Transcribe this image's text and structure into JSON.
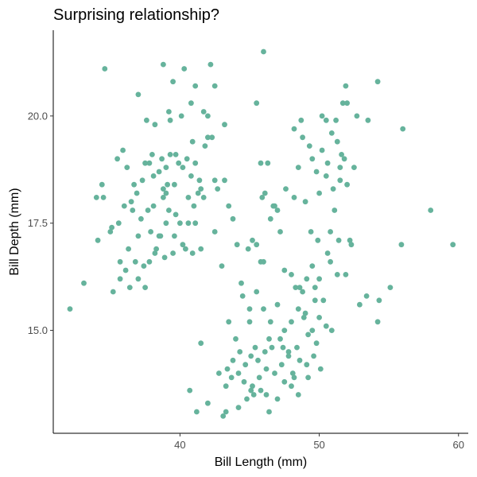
{
  "chart_data": {
    "type": "scatter",
    "title": "Surprising relationship?",
    "xlabel": "Bill Length (mm)",
    "ylabel": "Bill Depth (mm)",
    "xlim": [
      30.9,
      60.7
    ],
    "ylim": [
      12.6,
      22.0
    ],
    "x_ticks": [
      40,
      50,
      60
    ],
    "x_tick_labels": [
      "40",
      "50",
      "60"
    ],
    "y_ticks": [
      15.0,
      17.5,
      20.0
    ],
    "y_tick_labels": [
      "15.0",
      "17.5",
      "20.0"
    ],
    "grid": false,
    "legend": "none",
    "point_color": "#66b39c",
    "points": [
      [
        34.6,
        21.1
      ],
      [
        38.8,
        21.2
      ],
      [
        40.3,
        21.1
      ],
      [
        42.2,
        21.2
      ],
      [
        46.0,
        21.5
      ],
      [
        37.0,
        20.5
      ],
      [
        39.5,
        20.8
      ],
      [
        41.1,
        20.7
      ],
      [
        42.5,
        20.7
      ],
      [
        51.9,
        20.7
      ],
      [
        54.2,
        20.8
      ],
      [
        39.2,
        20.1
      ],
      [
        40.1,
        20.0
      ],
      [
        40.8,
        20.3
      ],
      [
        41.7,
        20.1
      ],
      [
        42.0,
        20.0
      ],
      [
        45.5,
        20.3
      ],
      [
        51.7,
        20.3
      ],
      [
        52.0,
        20.3
      ],
      [
        50.2,
        20.0
      ],
      [
        52.7,
        20.0
      ],
      [
        37.6,
        19.9
      ],
      [
        38.2,
        19.8
      ],
      [
        39.3,
        19.9
      ],
      [
        43.2,
        19.8
      ],
      [
        48.7,
        19.9
      ],
      [
        50.5,
        19.9
      ],
      [
        51.2,
        19.9
      ],
      [
        53.5,
        19.9
      ],
      [
        56.0,
        19.7
      ],
      [
        48.2,
        19.7
      ],
      [
        48.8,
        19.5
      ],
      [
        34.4,
        18.4
      ],
      [
        35.5,
        19.0
      ],
      [
        35.9,
        19.2
      ],
      [
        36.2,
        18.8
      ],
      [
        36.7,
        18.4
      ],
      [
        36.9,
        18.2
      ],
      [
        37.3,
        18.5
      ],
      [
        37.8,
        18.9
      ],
      [
        38.1,
        18.6
      ],
      [
        38.5,
        18.7
      ],
      [
        38.8,
        18.3
      ],
      [
        39.0,
        18.8
      ],
      [
        39.3,
        19.1
      ],
      [
        39.6,
        18.4
      ],
      [
        39.9,
        18.9
      ],
      [
        40.2,
        18.8
      ],
      [
        40.5,
        19.0
      ],
      [
        40.8,
        18.6
      ],
      [
        41.1,
        18.9
      ],
      [
        41.4,
        18.5
      ],
      [
        41.8,
        19.3
      ],
      [
        42.0,
        19.5
      ],
      [
        42.3,
        19.5
      ],
      [
        42.5,
        18.5
      ],
      [
        43.2,
        18.5
      ],
      [
        38.7,
        19.0
      ],
      [
        39.7,
        19.1
      ],
      [
        40.9,
        19.4
      ],
      [
        41.5,
        18.3
      ],
      [
        37.5,
        18.9
      ],
      [
        38.0,
        19.1
      ],
      [
        36.5,
        18.0
      ],
      [
        34.0,
        18.1
      ],
      [
        35.1,
        17.4
      ],
      [
        35.6,
        17.5
      ],
      [
        36.0,
        17.9
      ],
      [
        36.6,
        17.8
      ],
      [
        37.2,
        17.6
      ],
      [
        37.7,
        17.8
      ],
      [
        38.1,
        17.9
      ],
      [
        38.6,
        17.2
      ],
      [
        39.0,
        17.5
      ],
      [
        39.2,
        17.8
      ],
      [
        39.7,
        17.7
      ],
      [
        40.2,
        17.0
      ],
      [
        40.6,
        17.5
      ],
      [
        41.1,
        17.5
      ],
      [
        41.5,
        16.9
      ],
      [
        42.5,
        17.3
      ],
      [
        43.5,
        17.9
      ],
      [
        35.0,
        17.3
      ],
      [
        36.3,
        16.9
      ],
      [
        37.0,
        17.2
      ],
      [
        37.8,
        16.6
      ],
      [
        38.3,
        16.9
      ],
      [
        38.9,
        16.7
      ],
      [
        39.5,
        16.8
      ],
      [
        40.4,
        16.9
      ],
      [
        40.9,
        16.8
      ],
      [
        34.1,
        17.1
      ],
      [
        34.5,
        18.1
      ],
      [
        35.7,
        16.6
      ],
      [
        36.1,
        16.4
      ],
      [
        36.8,
        16.6
      ],
      [
        37.4,
        16.5
      ],
      [
        38.2,
        16.8
      ],
      [
        38.5,
        17.2
      ],
      [
        39.6,
        17.2
      ],
      [
        40.0,
        17.5
      ],
      [
        41.0,
        17.9
      ],
      [
        41.3,
        18.2
      ],
      [
        37.0,
        16.2
      ],
      [
        37.9,
        17.3
      ],
      [
        38.8,
        18.1
      ],
      [
        39.1,
        18.4
      ],
      [
        33.1,
        16.1
      ],
      [
        32.1,
        15.5
      ],
      [
        35.2,
        15.9
      ],
      [
        35.7,
        16.2
      ],
      [
        36.4,
        16.0
      ],
      [
        37.5,
        16.0
      ],
      [
        39.0,
        18.2
      ],
      [
        40.6,
        18.1
      ],
      [
        41.7,
        18.1
      ],
      [
        42.7,
        18.3
      ],
      [
        43.8,
        17.6
      ],
      [
        44.1,
        17.0
      ],
      [
        45.5,
        17.0
      ],
      [
        45.9,
        18.1
      ],
      [
        45.2,
        17.1
      ],
      [
        46.1,
        18.2
      ],
      [
        46.7,
        17.9
      ],
      [
        47.0,
        17.8
      ],
      [
        48.2,
        18.1
      ],
      [
        49.0,
        18.0
      ],
      [
        50.0,
        18.2
      ],
      [
        50.5,
        18.6
      ],
      [
        51.0,
        18.3
      ],
      [
        51.5,
        18.5
      ],
      [
        52.0,
        18.4
      ],
      [
        49.5,
        19.0
      ],
      [
        50.2,
        19.2
      ],
      [
        51.3,
        19.4
      ],
      [
        51.6,
        19.1
      ],
      [
        50.9,
        19.6
      ],
      [
        49.3,
        19.3
      ],
      [
        48.5,
        18.8
      ],
      [
        49.8,
        18.7
      ],
      [
        52.5,
        18.8
      ],
      [
        50.6,
        18.9
      ],
      [
        51.8,
        19.0
      ],
      [
        47.6,
        18.3
      ],
      [
        50.8,
        17.3
      ],
      [
        51.4,
        17.1
      ],
      [
        52.3,
        17.0
      ],
      [
        49.9,
        17.1
      ],
      [
        51.1,
        17.8
      ],
      [
        49.4,
        17.3
      ],
      [
        45.8,
        18.9
      ],
      [
        46.3,
        18.9
      ],
      [
        46.5,
        17.6
      ],
      [
        46.8,
        17.9
      ],
      [
        44.9,
        16.9
      ],
      [
        45.8,
        16.6
      ],
      [
        47.5,
        16.4
      ],
      [
        48.0,
        16.3
      ],
      [
        48.6,
        16.0
      ],
      [
        49.1,
        16.2
      ],
      [
        49.5,
        16.5
      ],
      [
        48.8,
        15.9
      ],
      [
        48.3,
        16.0
      ],
      [
        49.7,
        15.7
      ],
      [
        50.0,
        16.2
      ],
      [
        50.3,
        15.7
      ],
      [
        50.8,
        16.6
      ],
      [
        51.3,
        16.3
      ],
      [
        51.9,
        16.3
      ],
      [
        52.9,
        15.6
      ],
      [
        53.4,
        15.8
      ],
      [
        54.3,
        15.7
      ],
      [
        55.1,
        16.0
      ],
      [
        55.9,
        17.0
      ],
      [
        58.0,
        17.8
      ],
      [
        59.6,
        17.0
      ],
      [
        43.0,
        16.5
      ],
      [
        44.5,
        15.8
      ],
      [
        45.0,
        15.2
      ],
      [
        45.5,
        15.9
      ],
      [
        46.0,
        15.5
      ],
      [
        46.5,
        15.2
      ],
      [
        47.0,
        15.6
      ],
      [
        47.5,
        15.0
      ],
      [
        48.0,
        15.2
      ],
      [
        48.5,
        15.5
      ],
      [
        49.0,
        15.4
      ],
      [
        49.5,
        15.0
      ],
      [
        50.0,
        15.3
      ],
      [
        50.5,
        15.1
      ],
      [
        50.9,
        15.0
      ],
      [
        49.8,
        14.7
      ],
      [
        49.2,
        14.9
      ],
      [
        48.4,
        14.6
      ],
      [
        47.8,
        14.5
      ],
      [
        47.2,
        14.8
      ],
      [
        46.6,
        14.6
      ],
      [
        46.1,
        14.5
      ],
      [
        45.6,
        14.3
      ],
      [
        45.1,
        14.4
      ],
      [
        44.7,
        14.2
      ],
      [
        44.3,
        14.5
      ],
      [
        43.8,
        14.3
      ],
      [
        43.4,
        14.1
      ],
      [
        42.8,
        14.0
      ],
      [
        43.3,
        13.7
      ],
      [
        43.7,
        13.9
      ],
      [
        44.2,
        14.0
      ],
      [
        44.6,
        13.8
      ],
      [
        45.2,
        13.7
      ],
      [
        45.7,
        13.9
      ],
      [
        46.2,
        14.1
      ],
      [
        46.8,
        14.0
      ],
      [
        47.3,
        14.2
      ],
      [
        47.8,
        14.4
      ],
      [
        48.2,
        13.9
      ],
      [
        48.6,
        14.3
      ],
      [
        49.1,
        14.2
      ],
      [
        49.6,
        14.4
      ],
      [
        50.1,
        14.1
      ],
      [
        45.3,
        13.5
      ],
      [
        44.8,
        13.4
      ],
      [
        44.2,
        13.2
      ],
      [
        43.1,
        13.0
      ],
      [
        42.0,
        13.3
      ],
      [
        41.2,
        13.1
      ],
      [
        40.7,
        13.6
      ],
      [
        45.8,
        13.6
      ],
      [
        46.2,
        13.5
      ],
      [
        46.4,
        13.1
      ],
      [
        47.0,
        13.4
      ],
      [
        47.5,
        13.8
      ],
      [
        48.0,
        13.7
      ],
      [
        48.5,
        13.5
      ],
      [
        43.3,
        13.1
      ],
      [
        45.1,
        13.6
      ],
      [
        41.5,
        14.7
      ],
      [
        43.5,
        15.2
      ],
      [
        44.0,
        14.8
      ],
      [
        45.4,
        14.6
      ],
      [
        46.4,
        14.8
      ],
      [
        47.4,
        14.6
      ],
      [
        48.9,
        15.3
      ],
      [
        49.7,
        16.0
      ],
      [
        50.6,
        16.8
      ],
      [
        47.2,
        17.3
      ],
      [
        46.0,
        16.6
      ],
      [
        44.4,
        16.1
      ],
      [
        45.0,
        15.5
      ],
      [
        52.2,
        17.1
      ],
      [
        51.5,
        18.8
      ],
      [
        54.2,
        15.2
      ],
      [
        48.1,
        14.0
      ],
      [
        49.2,
        13.9
      ]
    ]
  }
}
